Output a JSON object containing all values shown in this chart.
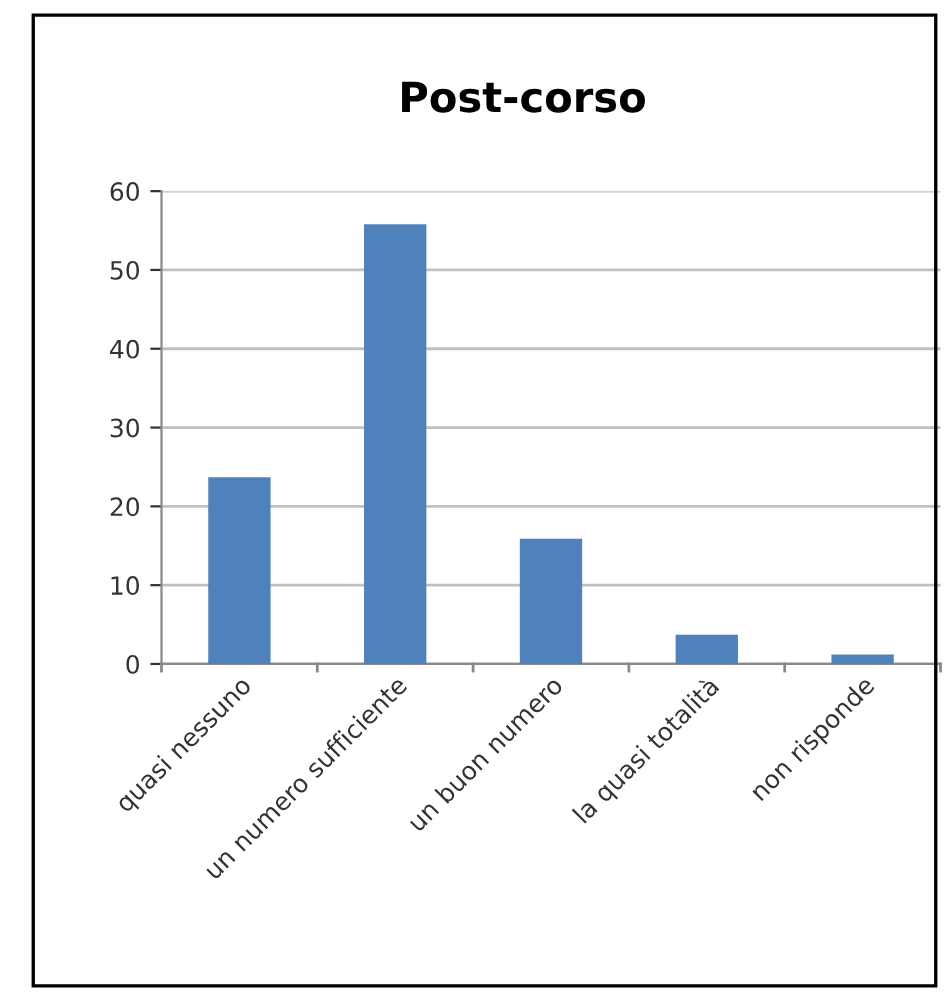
{
  "chart_data": {
    "type": "bar",
    "title": "Post-corso",
    "categories": [
      "quasi nessuno",
      "un numero sufficiente",
      "un buon numero",
      "la quasi totalità",
      "non risponde"
    ],
    "values": [
      23.7,
      55.8,
      15.9,
      3.7,
      1.2
    ],
    "color": "#4f81bd",
    "ylim": [
      0,
      60
    ],
    "yticks": [
      0,
      10,
      20,
      30,
      40,
      50,
      60
    ],
    "grid": "y"
  }
}
